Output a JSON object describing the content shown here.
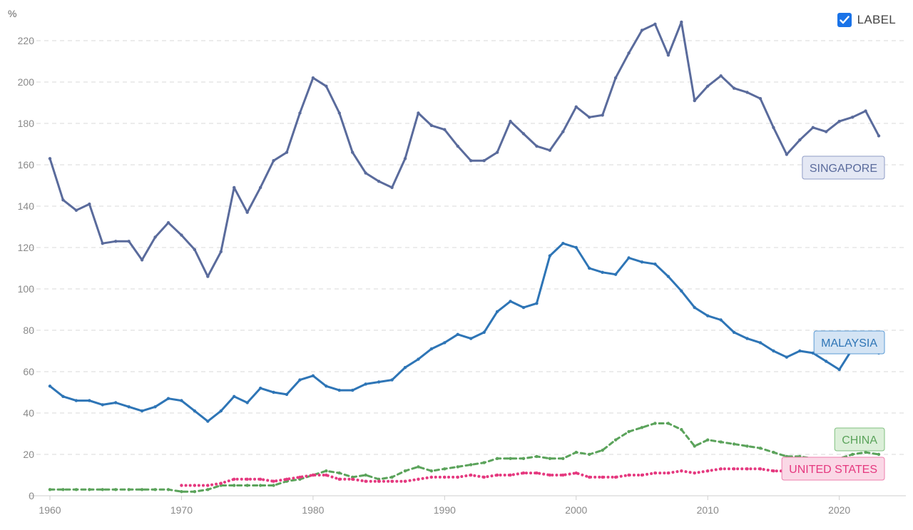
{
  "controls": {
    "label_toggle": "LABEL",
    "label_checked": true
  },
  "chart_data": {
    "type": "line",
    "ylabel": "%",
    "xlim": [
      1960,
      2023
    ],
    "ylim": [
      0,
      230
    ],
    "yticks": [
      0,
      20,
      40,
      60,
      80,
      100,
      120,
      140,
      160,
      180,
      200,
      220
    ],
    "xticks": [
      1960,
      1970,
      1980,
      1990,
      2000,
      2010,
      2020
    ],
    "grid": true,
    "series": [
      {
        "name": "SINGAPORE",
        "color": "#5a6b9c",
        "style": "solid",
        "label_bg": "#e4e8f4",
        "label_border": "#8f9cc6",
        "x": [
          1960,
          1961,
          1962,
          1963,
          1964,
          1965,
          1966,
          1967,
          1968,
          1969,
          1970,
          1971,
          1972,
          1973,
          1974,
          1975,
          1976,
          1977,
          1978,
          1979,
          1980,
          1981,
          1982,
          1983,
          1984,
          1985,
          1986,
          1987,
          1988,
          1989,
          1990,
          1991,
          1992,
          1993,
          1994,
          1995,
          1996,
          1997,
          1998,
          1999,
          2000,
          2001,
          2002,
          2003,
          2004,
          2005,
          2006,
          2007,
          2008,
          2009,
          2010,
          2011,
          2012,
          2013,
          2014,
          2015,
          2016,
          2017,
          2018,
          2019,
          2020,
          2021,
          2022,
          2023
        ],
        "values": [
          163,
          143,
          138,
          141,
          122,
          123,
          123,
          114,
          125,
          132,
          126,
          119,
          106,
          118,
          149,
          137,
          149,
          162,
          166,
          185,
          202,
          198,
          185,
          166,
          156,
          152,
          149,
          163,
          185,
          179,
          177,
          169,
          162,
          162,
          166,
          181,
          175,
          169,
          167,
          176,
          188,
          183,
          184,
          202,
          214,
          225,
          228,
          213,
          229,
          191,
          198,
          203,
          197,
          195,
          192,
          178,
          165,
          172,
          178,
          176,
          181,
          183,
          186,
          174
        ]
      },
      {
        "name": "MALAYSIA",
        "color": "#2e75b6",
        "style": "solid",
        "label_bg": "#d4e4f4",
        "label_border": "#5b9bd5",
        "x": [
          1960,
          1961,
          1962,
          1963,
          1964,
          1965,
          1966,
          1967,
          1968,
          1969,
          1970,
          1971,
          1972,
          1973,
          1974,
          1975,
          1976,
          1977,
          1978,
          1979,
          1980,
          1981,
          1982,
          1983,
          1984,
          1985,
          1986,
          1987,
          1988,
          1989,
          1990,
          1991,
          1992,
          1993,
          1994,
          1995,
          1996,
          1997,
          1998,
          1999,
          2000,
          2001,
          2002,
          2003,
          2004,
          2005,
          2006,
          2007,
          2008,
          2009,
          2010,
          2011,
          2012,
          2013,
          2014,
          2015,
          2016,
          2017,
          2018,
          2019,
          2020,
          2021,
          2022,
          2023
        ],
        "values": [
          53,
          48,
          46,
          46,
          44,
          45,
          43,
          41,
          43,
          47,
          46,
          41,
          36,
          41,
          48,
          45,
          52,
          50,
          49,
          56,
          58,
          53,
          51,
          51,
          54,
          55,
          56,
          62,
          66,
          71,
          74,
          78,
          76,
          79,
          89,
          94,
          91,
          93,
          116,
          122,
          120,
          110,
          108,
          107,
          115,
          113,
          112,
          106,
          99,
          91,
          87,
          85,
          79,
          76,
          74,
          70,
          67,
          70,
          69,
          65,
          61,
          71,
          75,
          69
        ]
      },
      {
        "name": "CHINA",
        "color": "#5ba35b",
        "style": "dashed",
        "label_bg": "#dcefd9",
        "label_border": "#7fbf7f",
        "x": [
          1960,
          1961,
          1962,
          1963,
          1964,
          1965,
          1966,
          1967,
          1968,
          1969,
          1970,
          1971,
          1972,
          1973,
          1974,
          1975,
          1976,
          1977,
          1978,
          1979,
          1980,
          1981,
          1982,
          1983,
          1984,
          1985,
          1986,
          1987,
          1988,
          1989,
          1990,
          1991,
          1992,
          1993,
          1994,
          1995,
          1996,
          1997,
          1998,
          1999,
          2000,
          2001,
          2002,
          2003,
          2004,
          2005,
          2006,
          2007,
          2008,
          2009,
          2010,
          2011,
          2012,
          2013,
          2014,
          2015,
          2016,
          2017,
          2018,
          2019,
          2020,
          2021,
          2022,
          2023
        ],
        "values": [
          3,
          3,
          3,
          3,
          3,
          3,
          3,
          3,
          3,
          3,
          2,
          2,
          3,
          5,
          5,
          5,
          5,
          5,
          7,
          8,
          10,
          12,
          11,
          9,
          10,
          8,
          9,
          12,
          14,
          12,
          13,
          14,
          15,
          16,
          18,
          18,
          18,
          19,
          18,
          18,
          21,
          20,
          22,
          27,
          31,
          33,
          35,
          35,
          32,
          24,
          27,
          26,
          25,
          24,
          23,
          21,
          19,
          19,
          18,
          18,
          18,
          20,
          21,
          20
        ]
      },
      {
        "name": "UNITED STATES",
        "color": "#e5397f",
        "style": "dotted",
        "label_bg": "#fad8e6",
        "label_border": "#ee7fae",
        "x": [
          1970,
          1971,
          1972,
          1973,
          1974,
          1975,
          1976,
          1977,
          1978,
          1979,
          1980,
          1981,
          1982,
          1983,
          1984,
          1985,
          1986,
          1987,
          1988,
          1989,
          1990,
          1991,
          1992,
          1993,
          1994,
          1995,
          1996,
          1997,
          1998,
          1999,
          2000,
          2001,
          2002,
          2003,
          2004,
          2005,
          2006,
          2007,
          2008,
          2009,
          2010,
          2011,
          2012,
          2013,
          2014,
          2015,
          2016,
          2017,
          2018,
          2019,
          2020,
          2021,
          2022,
          2023
        ],
        "values": [
          5,
          5,
          5,
          6,
          8,
          8,
          8,
          7,
          8,
          9,
          10,
          10,
          8,
          8,
          7,
          7,
          7,
          7,
          8,
          9,
          9,
          9,
          10,
          9,
          10,
          10,
          11,
          11,
          10,
          10,
          11,
          9,
          9,
          9,
          10,
          10,
          11,
          11,
          12,
          11,
          12,
          13,
          13,
          13,
          13,
          12,
          12,
          12,
          12,
          12,
          11,
          11,
          12,
          11
        ]
      }
    ]
  }
}
